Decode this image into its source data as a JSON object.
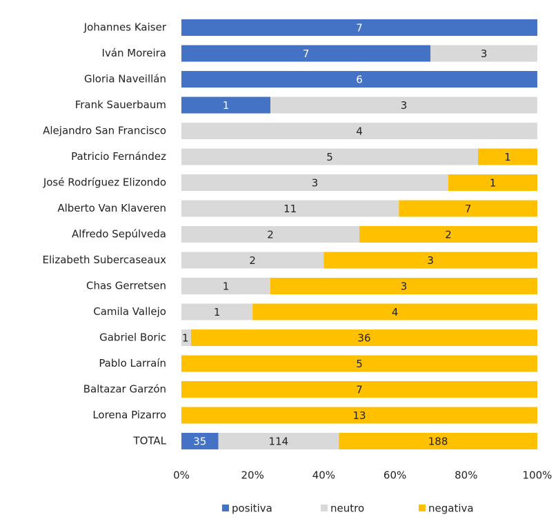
{
  "chart_data": {
    "type": "stacked100_barh",
    "categories": [
      "Johannes Kaiser",
      "Iván Moreira",
      "Gloria Naveillán",
      "Frank Sauerbaum",
      "Alejandro San Francisco",
      "Patricio Fernández",
      "José Rodríguez Elizondo",
      "Alberto Van Klaveren",
      "Alfredo Sepúlveda",
      "Elizabeth Subercaseaux",
      "Chas Gerretsen",
      "Camila Vallejo",
      "Gabriel Boric",
      "Pablo Larraín",
      "Baltazar Garzón",
      "Lorena Pizarro",
      "TOTAL"
    ],
    "series": [
      {
        "name": "positiva",
        "color": "#4472c4",
        "values": [
          7,
          7,
          6,
          1,
          0,
          0,
          0,
          0,
          0,
          0,
          0,
          0,
          0,
          0,
          0,
          0,
          35
        ]
      },
      {
        "name": "neutro",
        "color": "#d9d9d9",
        "values": [
          0,
          3,
          0,
          3,
          4,
          5,
          3,
          11,
          2,
          2,
          1,
          1,
          1,
          0,
          0,
          0,
          114
        ]
      },
      {
        "name": "negativa",
        "color": "#ffc000",
        "values": [
          0,
          0,
          0,
          0,
          0,
          1,
          1,
          7,
          2,
          3,
          3,
          4,
          36,
          5,
          7,
          13,
          188
        ]
      }
    ],
    "xlim": [
      0,
      100
    ],
    "xticks": [
      {
        "value": 0,
        "label": "0%"
      },
      {
        "value": 20,
        "label": "20%"
      },
      {
        "value": 40,
        "label": "40%"
      },
      {
        "value": 60,
        "label": "60%"
      },
      {
        "value": 80,
        "label": "80%"
      },
      {
        "value": 100,
        "label": "100%"
      }
    ],
    "legend": "bottom"
  }
}
